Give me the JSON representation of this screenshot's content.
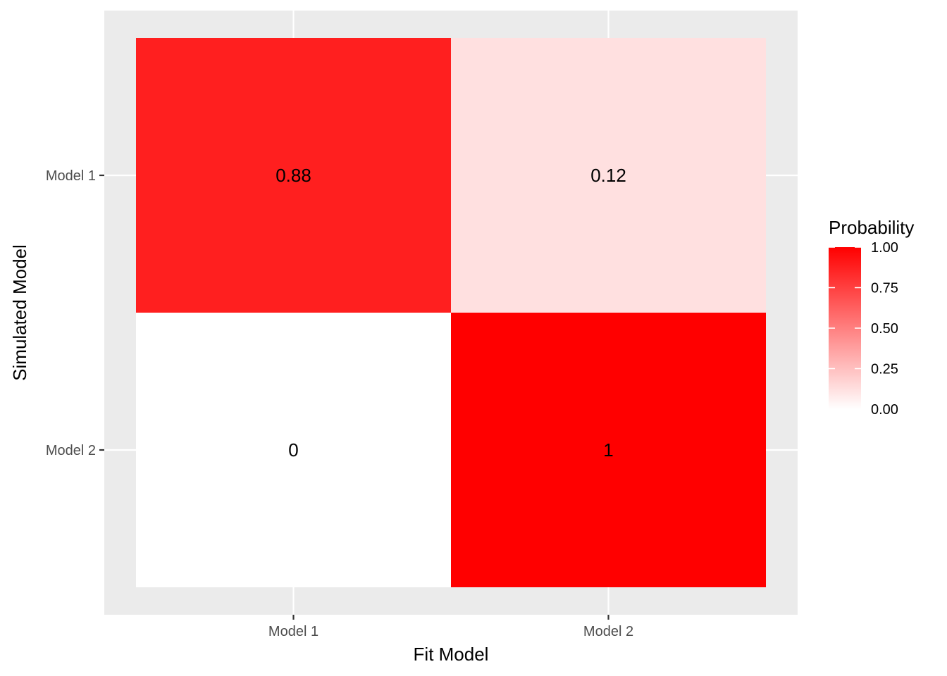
{
  "chart_data": {
    "type": "heatmap",
    "x_categories": [
      "Model 1",
      "Model 2"
    ],
    "y_categories": [
      "Model 1",
      "Model 2"
    ],
    "cells": [
      {
        "x": "Model 1",
        "y": "Model 1",
        "value": 0.88,
        "label": "0.88"
      },
      {
        "x": "Model 2",
        "y": "Model 1",
        "value": 0.12,
        "label": "0.12"
      },
      {
        "x": "Model 1",
        "y": "Model 2",
        "value": 0,
        "label": "0"
      },
      {
        "x": "Model 2",
        "y": "Model 2",
        "value": 1,
        "label": "1"
      }
    ],
    "xlabel": "Fit Model",
    "ylabel": "Simulated Model",
    "legend": {
      "title": "Probability",
      "placement": "right",
      "range": [
        0,
        1
      ],
      "low_color": "#ffffff",
      "high_color": "#ff0000",
      "ticks": [
        {
          "value": 0,
          "label": "0.00"
        },
        {
          "value": 0.25,
          "label": "0.25"
        },
        {
          "value": 0.5,
          "label": "0.50"
        },
        {
          "value": 0.75,
          "label": "0.75"
        },
        {
          "value": 1,
          "label": "1.00"
        }
      ]
    },
    "panel_background": "#ebebeb",
    "grid_color": "#ffffff",
    "grid": true
  }
}
